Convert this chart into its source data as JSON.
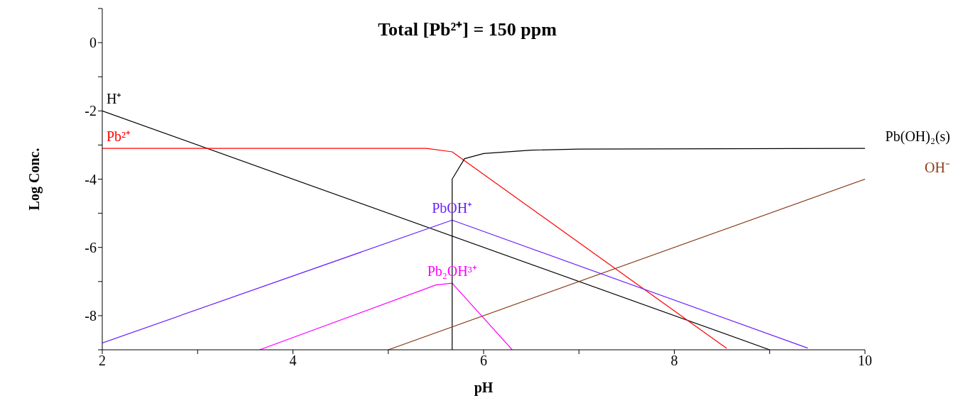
{
  "chart_data": {
    "type": "line",
    "title": "Total [Pb²⁺] = 150 ppm",
    "xlabel": "pH",
    "ylabel": "Log Conc.",
    "xlim": [
      2,
      10
    ],
    "ylim": [
      -9,
      1
    ],
    "xticks": [
      2,
      {
        "value": 3,
        "label": null
      },
      4,
      {
        "value": 5,
        "label": null
      },
      6,
      {
        "value": 7,
        "label": null
      },
      8,
      {
        "value": 9,
        "label": null
      },
      10
    ],
    "yticks": [
      {
        "value": -9,
        "label": null
      },
      -8,
      {
        "value": -7,
        "label": null
      },
      -6,
      {
        "value": -5,
        "label": null
      },
      -4,
      {
        "value": -3,
        "label": null
      },
      -2,
      {
        "value": -1,
        "label": null
      },
      0,
      {
        "value": 1,
        "label": null
      }
    ],
    "series": [
      {
        "name": "H⁺",
        "color": "#000000",
        "x": [
          2,
          9
        ],
        "values": [
          -2,
          -9
        ]
      },
      {
        "name": "Pb²⁺",
        "color": "#ff0000",
        "x": [
          2,
          5.4,
          5.67,
          8.55
        ],
        "values": [
          -3.1,
          -3.1,
          -3.2,
          -8.96
        ]
      },
      {
        "name": "PbOH⁺",
        "color": "#6a1fff",
        "x": [
          2,
          5.67,
          9.4
        ],
        "values": [
          -8.8,
          -5.2,
          -8.95
        ]
      },
      {
        "name": "Pb₂OH³⁺",
        "color": "#ff00ff",
        "x": [
          3.65,
          5.5,
          5.67,
          6.3
        ],
        "values": [
          -9,
          -7.1,
          -7.05,
          -9
        ]
      },
      {
        "name": "Pb(OH)₂(s)",
        "color": "#000000",
        "x": [
          5.67,
          5.67,
          5.8,
          6,
          6.5,
          7,
          10
        ],
        "values": [
          -9,
          -4,
          -3.4,
          -3.25,
          -3.15,
          -3.12,
          -3.1
        ]
      },
      {
        "name": "OH⁻",
        "color": "#8b3a1a",
        "x": [
          5,
          10
        ],
        "values": [
          -9,
          -4
        ]
      }
    ]
  }
}
